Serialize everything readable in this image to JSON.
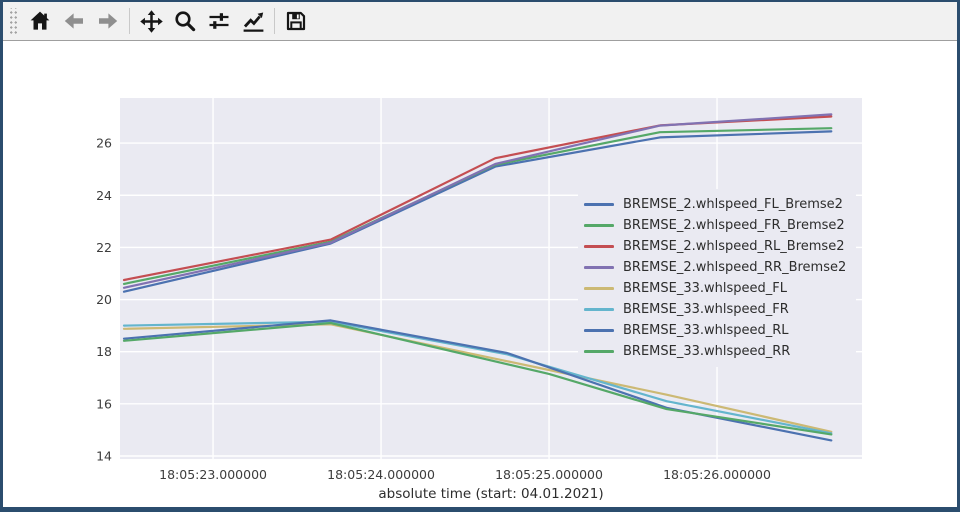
{
  "window": {
    "border_color": "#2b4d6e",
    "toolbar_bg": "#f1f1f1"
  },
  "toolbar": {
    "buttons": [
      {
        "icon": "home-icon"
      },
      {
        "icon": "back-arrow-icon"
      },
      {
        "icon": "forward-arrow-icon"
      },
      {
        "icon": "pan-move-icon"
      },
      {
        "icon": "zoom-magnifier-icon"
      },
      {
        "icon": "configure-subplots-sliders-icon"
      },
      {
        "icon": "customize-plot-line-chart-icon"
      },
      {
        "icon": "save-floppy-icon"
      }
    ]
  },
  "chart_data": {
    "type": "line",
    "title": "",
    "xlabel": "absolute time (start: 04.01.2021)",
    "ylabel": "",
    "grid": true,
    "plot_bg": "#eaeaf2",
    "grid_color": "#ffffff",
    "tick_color": "#3d3d3d",
    "legend_position": "center right",
    "x_unit": "seconds after 18:05:00 on 04.01.2021",
    "x_range": [
      22.446,
      26.863
    ],
    "y_range": [
      13.885,
      27.73
    ],
    "x_ticks": [
      {
        "s": 23,
        "label": "18:05:23.000000"
      },
      {
        "s": 24,
        "label": "18:05:24.000000"
      },
      {
        "s": 25,
        "label": "18:05:25.000000"
      },
      {
        "s": 26,
        "label": "18:05:26.000000"
      }
    ],
    "y_ticks": [
      14,
      16,
      18,
      20,
      22,
      24,
      26
    ],
    "series": [
      {
        "name": "BREMSE_2.whlspeed_FL_Bremse2",
        "color": "#4c72b0",
        "points": [
          [
            22.47,
            20.3
          ],
          [
            23.7,
            22.15
          ],
          [
            24.68,
            25.1
          ],
          [
            25.66,
            26.22
          ],
          [
            26.68,
            26.45
          ]
        ]
      },
      {
        "name": "BREMSE_2.whlspeed_FR_Bremse2",
        "color": "#55a868",
        "points": [
          [
            22.47,
            20.6
          ],
          [
            23.7,
            22.22
          ],
          [
            24.68,
            25.17
          ],
          [
            25.66,
            26.42
          ],
          [
            26.68,
            26.57
          ]
        ]
      },
      {
        "name": "BREMSE_2.whlspeed_RL_Bremse2",
        "color": "#c44e52",
        "points": [
          [
            22.47,
            20.75
          ],
          [
            23.7,
            22.3
          ],
          [
            24.68,
            25.42
          ],
          [
            25.66,
            26.68
          ],
          [
            26.68,
            27.02
          ]
        ]
      },
      {
        "name": "BREMSE_2.whlspeed_RR_Bremse2",
        "color": "#8172b2",
        "points": [
          [
            22.47,
            20.45
          ],
          [
            23.7,
            22.18
          ],
          [
            24.68,
            25.2
          ],
          [
            25.66,
            26.67
          ],
          [
            26.68,
            27.1
          ]
        ]
      },
      {
        "name": "BREMSE_33.whlspeed_FL",
        "color": "#ccb974",
        "points": [
          [
            22.47,
            18.88
          ],
          [
            23.7,
            19.05
          ],
          [
            25.0,
            17.3
          ],
          [
            25.7,
            16.35
          ],
          [
            26.68,
            14.93
          ]
        ]
      },
      {
        "name": "BREMSE_33.whlspeed_FR",
        "color": "#64b5cd",
        "points": [
          [
            22.47,
            19.0
          ],
          [
            23.7,
            19.15
          ],
          [
            24.75,
            17.9
          ],
          [
            25.7,
            16.1
          ],
          [
            26.68,
            14.87
          ]
        ]
      },
      {
        "name": "BREMSE_33.whlspeed_RL",
        "color": "#4c72b0",
        "points": [
          [
            22.47,
            18.5
          ],
          [
            23.7,
            19.2
          ],
          [
            24.75,
            17.95
          ],
          [
            25.7,
            15.85
          ],
          [
            26.68,
            14.6
          ]
        ]
      },
      {
        "name": "BREMSE_33.whlspeed_RR",
        "color": "#55a868",
        "points": [
          [
            22.47,
            18.42
          ],
          [
            23.7,
            19.1
          ],
          [
            25.0,
            17.15
          ],
          [
            25.7,
            15.8
          ],
          [
            26.68,
            14.83
          ]
        ]
      }
    ]
  }
}
